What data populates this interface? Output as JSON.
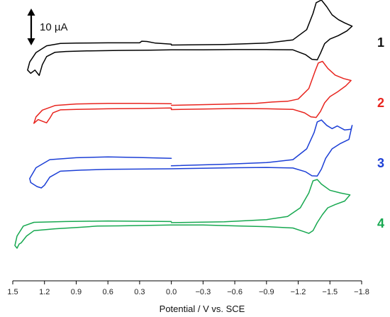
{
  "chart_data": {
    "type": "line",
    "title": "",
    "xlabel": "Potential / V vs. SCE",
    "ylabel": "",
    "x_reversed": true,
    "xlim": [
      1.5,
      -1.8
    ],
    "x_ticks": [
      "1.5",
      "1.2",
      "0.9",
      "0.6",
      "0.3",
      "0.0",
      "−0.3",
      "−0.6",
      "−0.9",
      "−1.2",
      "−1.5",
      "−1.8"
    ],
    "grid": false,
    "legend": "labels at right end of each trace",
    "scale_bar": {
      "label": "10 µA",
      "value": 10,
      "unit": "µA"
    },
    "series": [
      {
        "name": "1",
        "color": "#000000",
        "offset": 0,
        "points": [
          [
            0.0,
            3.3
          ],
          [
            -0.5,
            3.5
          ],
          [
            -0.9,
            4.0
          ],
          [
            -1.15,
            5.2
          ],
          [
            -1.28,
            9.0
          ],
          [
            -1.34,
            15.0
          ],
          [
            -1.37,
            19.0
          ],
          [
            -1.42,
            20.0
          ],
          [
            -1.47,
            17.5
          ],
          [
            -1.52,
            14.5
          ],
          [
            -1.58,
            12.7
          ],
          [
            -1.64,
            11.5
          ],
          [
            -1.71,
            10.3
          ],
          [
            -1.66,
            8.5
          ],
          [
            -1.58,
            6.8
          ],
          [
            -1.5,
            5.5
          ],
          [
            -1.45,
            3.8
          ],
          [
            -1.41,
            0.2
          ],
          [
            -1.38,
            -2.2
          ],
          [
            -1.33,
            -2.0
          ],
          [
            -1.27,
            -0.3
          ],
          [
            -1.15,
            1.5
          ],
          [
            -0.9,
            1.6
          ],
          [
            -0.6,
            1.6
          ],
          [
            -0.3,
            1.5
          ],
          [
            0.0,
            1.5
          ],
          [
            0.2,
            1.4
          ],
          [
            0.5,
            1.3
          ],
          [
            0.8,
            1.1
          ],
          [
            1.0,
            0.9
          ],
          [
            1.1,
            0.6
          ],
          [
            1.18,
            -1.0
          ],
          [
            1.22,
            -4.0
          ],
          [
            1.25,
            -8.0
          ],
          [
            1.29,
            -6.0
          ],
          [
            1.33,
            -7.2
          ],
          [
            1.36,
            -6.0
          ],
          [
            1.34,
            -3.0
          ],
          [
            1.28,
            0.5
          ],
          [
            1.18,
            3.0
          ],
          [
            1.05,
            3.9
          ],
          [
            0.9,
            4.0
          ],
          [
            0.6,
            4.1
          ],
          [
            0.3,
            4.1
          ],
          [
            0.28,
            4.7
          ],
          [
            0.23,
            4.6
          ],
          [
            0.15,
            4.0
          ],
          [
            0.0,
            3.6
          ]
        ]
      },
      {
        "name": "2",
        "color": "#e8251f",
        "offset": -1,
        "points": [
          [
            0.0,
            3.3
          ],
          [
            -0.4,
            3.6
          ],
          [
            -0.8,
            4.0
          ],
          [
            -0.95,
            4.5
          ],
          [
            -1.1,
            4.8
          ],
          [
            -1.2,
            5.6
          ],
          [
            -1.3,
            9.5
          ],
          [
            -1.36,
            16.0
          ],
          [
            -1.39,
            19.0
          ],
          [
            -1.43,
            19.6
          ],
          [
            -1.48,
            17.0
          ],
          [
            -1.55,
            14.5
          ],
          [
            -1.63,
            13.2
          ],
          [
            -1.7,
            12.5
          ],
          [
            -1.65,
            10.5
          ],
          [
            -1.57,
            8.2
          ],
          [
            -1.5,
            6.5
          ],
          [
            -1.45,
            4.2
          ],
          [
            -1.41,
            1.0
          ],
          [
            -1.37,
            -1.2
          ],
          [
            -1.32,
            -1.0
          ],
          [
            -1.26,
            0.5
          ],
          [
            -1.15,
            1.8
          ],
          [
            -0.9,
            2.0
          ],
          [
            -0.6,
            2.1
          ],
          [
            -0.3,
            1.9
          ],
          [
            0.0,
            1.7
          ],
          [
            0.0,
            2.3
          ],
          [
            0.3,
            2.1
          ],
          [
            0.6,
            2.0
          ],
          [
            0.9,
            1.8
          ],
          [
            1.05,
            1.6
          ],
          [
            1.12,
            0.5
          ],
          [
            1.15,
            -1.5
          ],
          [
            1.18,
            -3.2
          ],
          [
            1.22,
            -2.6
          ],
          [
            1.26,
            -2.0
          ],
          [
            1.3,
            -3.4
          ],
          [
            1.28,
            -1.0
          ],
          [
            1.22,
            1.5
          ],
          [
            1.1,
            3.2
          ],
          [
            0.9,
            3.8
          ],
          [
            0.6,
            4.0
          ],
          [
            0.3,
            4.0
          ],
          [
            0.0,
            3.9
          ]
        ]
      },
      {
        "name": "3",
        "color": "#1c3fd6",
        "offset": -2,
        "points": [
          [
            0.0,
            3.2
          ],
          [
            -0.5,
            3.8
          ],
          [
            -0.9,
            4.4
          ],
          [
            -1.15,
            5.5
          ],
          [
            -1.28,
            9.5
          ],
          [
            -1.35,
            15.5
          ],
          [
            -1.38,
            19.5
          ],
          [
            -1.42,
            20.2
          ],
          [
            -1.47,
            18.2
          ],
          [
            -1.52,
            17.0
          ],
          [
            -1.57,
            18.0
          ],
          [
            -1.64,
            16.5
          ],
          [
            -1.7,
            16.8
          ],
          [
            -1.71,
            18.2
          ],
          [
            -1.68,
            13.0
          ],
          [
            -1.6,
            11.5
          ],
          [
            -1.52,
            9.5
          ],
          [
            -1.46,
            6.0
          ],
          [
            -1.42,
            2.0
          ],
          [
            -1.38,
            -0.6
          ],
          [
            -1.33,
            -0.5
          ],
          [
            -1.27,
            1.0
          ],
          [
            -1.15,
            2.4
          ],
          [
            -0.9,
            2.6
          ],
          [
            -0.6,
            2.5
          ],
          [
            -0.3,
            2.3
          ],
          [
            0.0,
            2.1
          ],
          [
            0.3,
            2.0
          ],
          [
            0.6,
            1.9
          ],
          [
            0.85,
            1.6
          ],
          [
            1.05,
            1.2
          ],
          [
            1.15,
            -1.0
          ],
          [
            1.2,
            -4.0
          ],
          [
            1.23,
            -5.0
          ],
          [
            1.27,
            -4.5
          ],
          [
            1.33,
            -3.0
          ],
          [
            1.34,
            -1.5
          ],
          [
            1.28,
            2.5
          ],
          [
            1.15,
            5.5
          ],
          [
            0.9,
            6.2
          ],
          [
            0.6,
            6.5
          ],
          [
            0.3,
            6.3
          ],
          [
            0.0,
            6.0
          ]
        ]
      },
      {
        "name": "4",
        "color": "#17a850",
        "offset": -3,
        "points": [
          [
            0.0,
            4.5
          ],
          [
            -0.5,
            4.8
          ],
          [
            -0.9,
            5.6
          ],
          [
            -1.1,
            6.8
          ],
          [
            -1.22,
            10.0
          ],
          [
            -1.3,
            15.5
          ],
          [
            -1.34,
            20.0
          ],
          [
            -1.38,
            20.5
          ],
          [
            -1.42,
            18.8
          ],
          [
            -1.5,
            16.5
          ],
          [
            -1.6,
            15.5
          ],
          [
            -1.69,
            14.8
          ],
          [
            -1.64,
            12.5
          ],
          [
            -1.55,
            11.2
          ],
          [
            -1.48,
            10.0
          ],
          [
            -1.43,
            7.5
          ],
          [
            -1.38,
            4.5
          ],
          [
            -1.34,
            1.5
          ],
          [
            -1.3,
            0.5
          ],
          [
            -1.25,
            1.2
          ],
          [
            -1.15,
            2.5
          ],
          [
            -0.9,
            3.0
          ],
          [
            -0.6,
            3.3
          ],
          [
            -0.3,
            3.6
          ],
          [
            0.0,
            3.6
          ],
          [
            0.2,
            3.5
          ],
          [
            0.5,
            3.3
          ],
          [
            0.7,
            3.2
          ],
          [
            0.85,
            2.8
          ],
          [
            1.1,
            2.2
          ],
          [
            1.3,
            1.5
          ],
          [
            1.37,
            -0.5
          ],
          [
            1.42,
            -3.0
          ],
          [
            1.44,
            -3.5
          ],
          [
            1.46,
            -5.0
          ],
          [
            1.48,
            -4.0
          ],
          [
            1.46,
            -0.5
          ],
          [
            1.4,
            3.2
          ],
          [
            1.3,
            4.6
          ],
          [
            1.0,
            4.9
          ],
          [
            0.6,
            5.1
          ],
          [
            0.3,
            5.0
          ],
          [
            0.0,
            4.9
          ]
        ]
      }
    ]
  }
}
